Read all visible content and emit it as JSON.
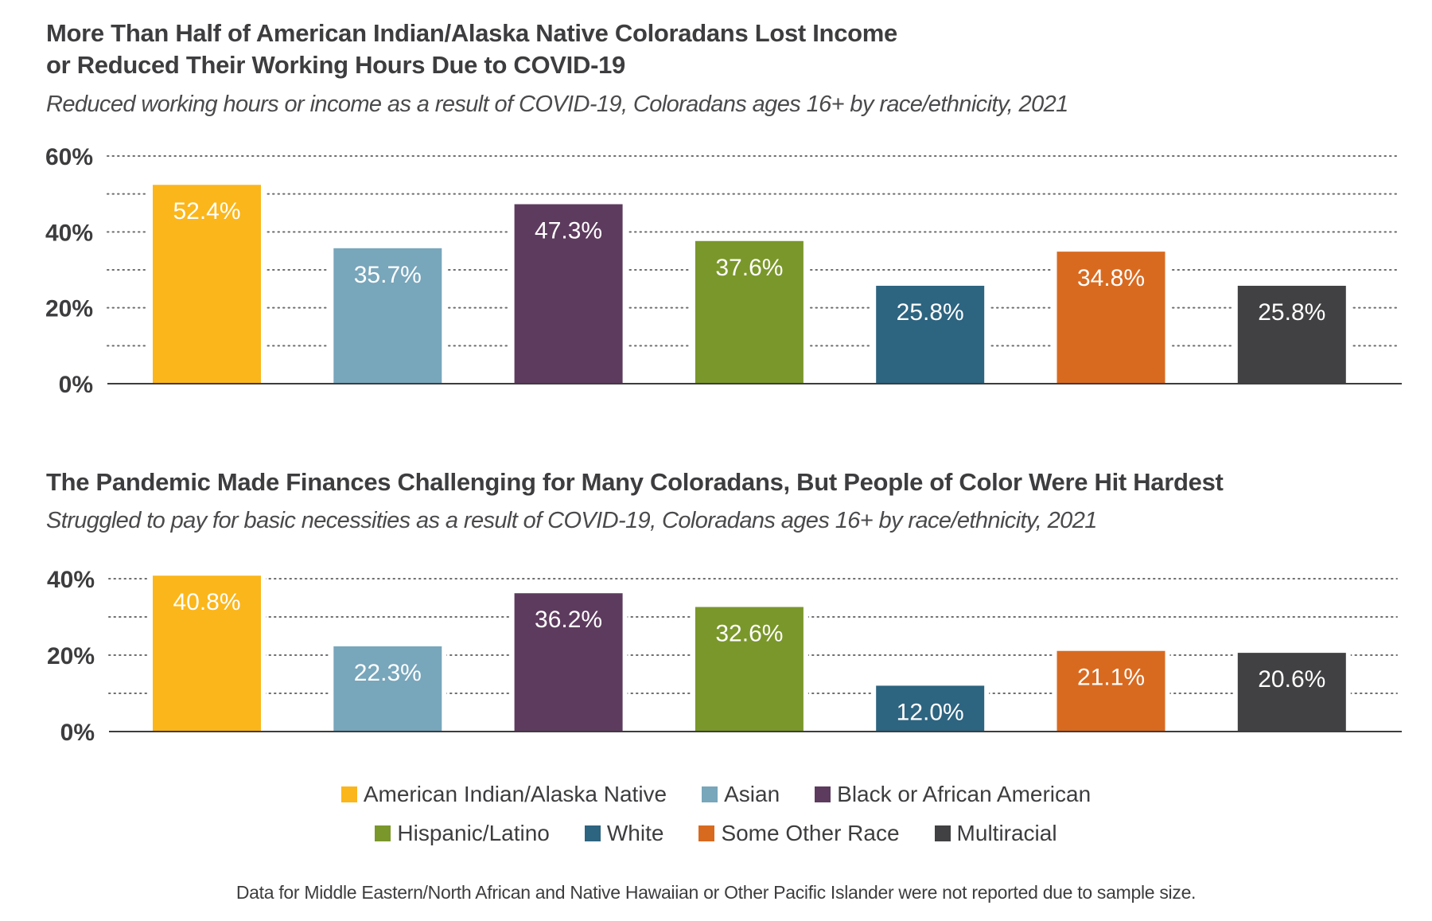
{
  "chart_data": [
    {
      "type": "bar",
      "title": "More Than Half of American Indian/Alaska Native Coloradans Lost Income or Reduced Their Working Hours Due to COVID-19",
      "title_lines": [
        "More Than Half of American Indian/Alaska Native Coloradans Lost Income",
        "or Reduced Their Working Hours Due to COVID-19"
      ],
      "subtitle": "Reduced working hours or income as a result of COVID-19, Coloradans ages 16+ by race/ethnicity, 2021",
      "categories": [
        "American Indian/Alaska Native",
        "Asian",
        "Black or African American",
        "Hispanic/Latino",
        "White",
        "Some Other Race",
        "Multiracial"
      ],
      "values": [
        52.4,
        35.7,
        47.3,
        37.6,
        25.8,
        34.8,
        25.8
      ],
      "data_labels": [
        "52.4%",
        "35.7%",
        "47.3%",
        "37.6%",
        "25.8%",
        "34.8%",
        "25.8%"
      ],
      "xlabel": "",
      "ylabel": "",
      "ylim": [
        0,
        60
      ],
      "yticks": [
        0,
        20,
        40,
        60
      ],
      "ytick_labels": [
        "0%",
        "20%",
        "40%",
        "60%"
      ],
      "grid_step": 10,
      "grid": true
    },
    {
      "type": "bar",
      "title": "The Pandemic Made Finances Challenging for Many Coloradans, But People of Color Were Hit Hardest",
      "title_lines": [
        "The Pandemic Made Finances Challenging for Many Coloradans, But People of Color Were Hit Hardest"
      ],
      "subtitle": "Struggled to pay for basic necessities as a result of COVID-19, Coloradans ages 16+ by race/ethnicity, 2021",
      "categories": [
        "American Indian/Alaska Native",
        "Asian",
        "Black or African American",
        "Hispanic/Latino",
        "White",
        "Some Other Race",
        "Multiracial"
      ],
      "values": [
        40.8,
        22.3,
        36.2,
        32.6,
        12.0,
        21.1,
        20.6
      ],
      "data_labels": [
        "40.8%",
        "22.3%",
        "36.2%",
        "32.6%",
        "12.0%",
        "21.1%",
        "20.6%"
      ],
      "xlabel": "",
      "ylabel": "",
      "ylim": [
        0,
        40
      ],
      "yticks": [
        0,
        20,
        40
      ],
      "ytick_labels": [
        "0%",
        "20%",
        "40%"
      ],
      "grid_step": 10,
      "grid": true
    }
  ],
  "legend": {
    "placement": "bottom-center",
    "rows": [
      [
        {
          "label": "American Indian/Alaska Native",
          "color": "#fbb61b"
        },
        {
          "label": "Asian",
          "color": "#78a6bb"
        },
        {
          "label": "Black or African American",
          "color": "#5d3b5e"
        }
      ],
      [
        {
          "label": "Hispanic/Latino",
          "color": "#7a972b"
        },
        {
          "label": "White",
          "color": "#2d6480"
        },
        {
          "label": "Some Other Race",
          "color": "#d86a20"
        },
        {
          "label": "Multiracial",
          "color": "#414143"
        }
      ]
    ]
  },
  "colors": [
    "#fbb61b",
    "#78a6bb",
    "#5d3b5e",
    "#7a972b",
    "#2d6480",
    "#d86a20",
    "#414143"
  ],
  "footnote": "Data for Middle Eastern/North African and Native Hawaiian or Other Pacific Islander were not reported due to sample size."
}
